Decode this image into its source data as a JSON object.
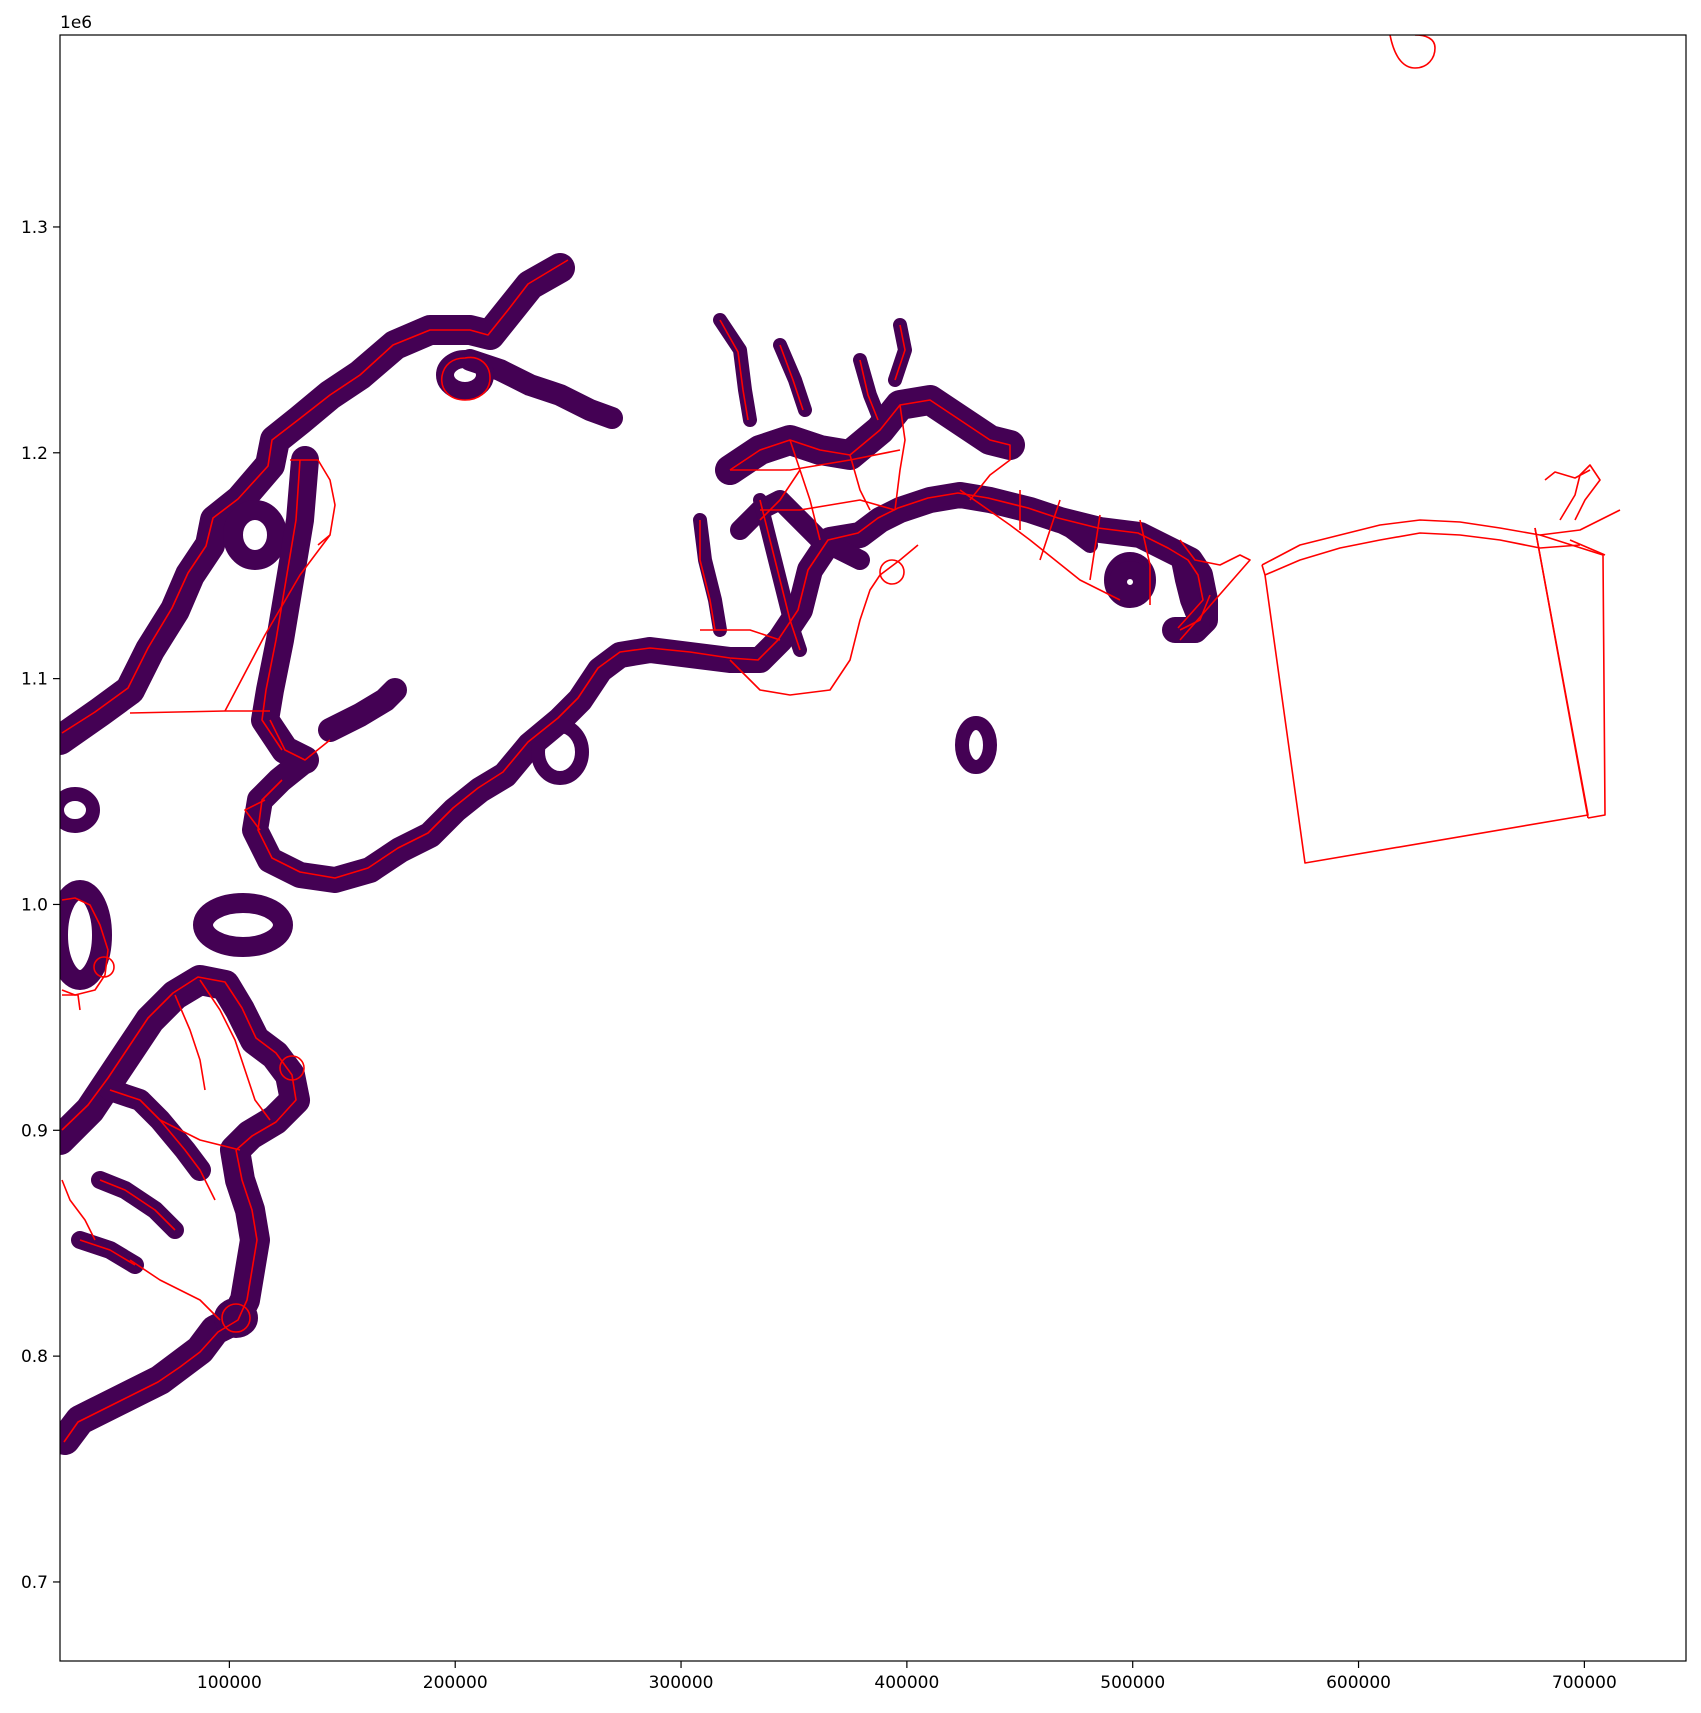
{
  "chart_data": {
    "type": "map",
    "title": "",
    "xlabel": "",
    "ylabel": "",
    "y_offset_label": "1e6",
    "xlim": [
      25000,
      745000
    ],
    "ylim": [
      665000,
      1385000
    ],
    "x_ticks": [
      100000,
      200000,
      300000,
      400000,
      500000,
      600000,
      700000
    ],
    "x_tick_labels": [
      "100000",
      "200000",
      "300000",
      "400000",
      "500000",
      "600000",
      "700000"
    ],
    "y_ticks": [
      700000,
      800000,
      900000,
      1000000,
      1100000,
      1200000,
      1300000
    ],
    "y_tick_labels": [
      "0.7",
      "0.8",
      "0.9",
      "1.0",
      "1.1",
      "1.2",
      "1.3"
    ],
    "fill_color": "#440154",
    "outline_color": "#ff0000",
    "grid": false,
    "legend": "none"
  }
}
